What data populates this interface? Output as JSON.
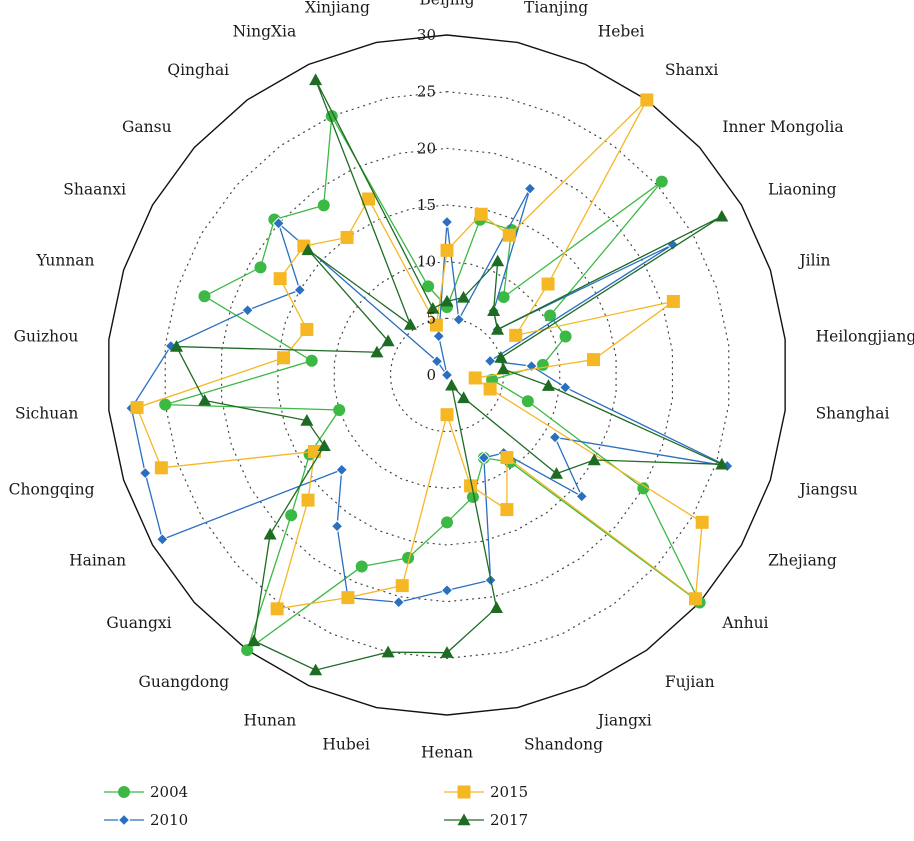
{
  "chart_data": {
    "type": "radar",
    "title": "",
    "categories": [
      "Beijing",
      "Tianjing",
      "Hebei",
      "Shanxi",
      "Inner Mongolia",
      "Liaoning",
      "Jilin",
      "Heilongjiang",
      "Shanghai",
      "Jiangsu",
      "Zhejiang",
      "Anhui",
      "Fujian",
      "Jiangxi",
      "Shandong",
      "Henan",
      "Hubei",
      "Hunan",
      "Guangdong",
      "Guangxi",
      "Hainan",
      "Chongqing",
      "Sichuan",
      "Guizhou",
      "Yunnan",
      "Shaanxi",
      "Gansu",
      "Qinghai",
      "NingXia",
      "Xinjiang"
    ],
    "rticks": [
      0,
      5,
      10,
      15,
      20,
      25,
      30
    ],
    "rlim": [
      0,
      30
    ],
    "grid": "dotted",
    "legend_position": "bottom",
    "series": [
      {
        "name": "2004",
        "color": "#3cb944",
        "marker": "circle",
        "values": [
          6,
          14,
          14,
          8.5,
          25.5,
          10.5,
          11,
          8.5,
          4,
          7.5,
          20,
          30,
          9.5,
          8,
          11,
          13,
          16.5,
          18.5,
          30,
          18.5,
          14,
          10,
          25,
          12,
          22.5,
          19,
          20.5,
          18.5,
          25,
          8
        ]
      },
      {
        "name": "2010",
        "color": "#2a6fc0",
        "marker": "diamond",
        "values": [
          13.5,
          5,
          18,
          7,
          6,
          23,
          4,
          7.5,
          10.5,
          26,
          11,
          16,
          8.5,
          8,
          18.5,
          19,
          20.5,
          21.5,
          16.5,
          12.5,
          29,
          28,
          28,
          24.5,
          18.5,
          15,
          20,
          1.5,
          0,
          3.5
        ]
      },
      {
        "name": "2015",
        "color": "#f5b724",
        "marker": "square",
        "values": [
          11,
          14.5,
          13.5,
          30,
          12,
          7,
          21,
          13,
          2.5,
          4,
          26,
          29.5,
          9,
          13,
          10,
          3.5,
          19,
          21.5,
          25.5,
          16.5,
          13.5,
          26.5,
          27.5,
          14.5,
          13,
          17,
          17,
          15,
          17,
          4.5
        ]
      },
      {
        "name": "2017",
        "color": "#1e6b24",
        "marker": "triangle",
        "values": [
          6.5,
          7,
          11,
          7,
          6,
          28,
          5,
          5,
          9,
          25.5,
          15,
          13,
          2.5,
          1,
          21,
          24.5,
          25,
          28.5,
          29,
          21,
          12.5,
          13,
          21.5,
          24,
          6.5,
          6,
          16.5,
          5.5,
          28.5,
          6
        ]
      }
    ]
  }
}
